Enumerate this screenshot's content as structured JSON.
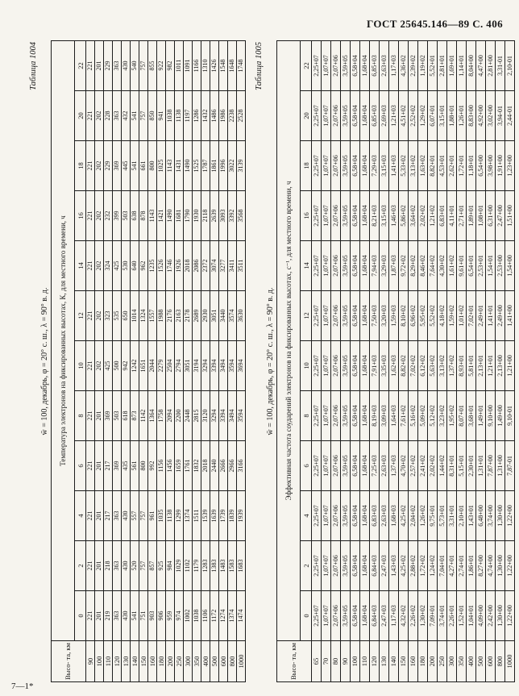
{
  "page": {
    "running_head": "ГОСТ 25645.146—89 С. 406",
    "printer_mark": "7—1*",
    "paper_color": "#f6f4ee",
    "ink_color": "#181818"
  },
  "tables": [
    {
      "label": "Таблица 1004",
      "title": "w̄ = 100, декабрь, φ = 20° с. ш., λ = 90° в. д.",
      "header": "Температура электронов на фиксированных высотах, К, для местного времени, ч",
      "row_header": "Высо- та, км",
      "hours": [
        "0",
        "2",
        "4",
        "6",
        "8",
        "10",
        "12",
        "14",
        "16",
        "18",
        "20",
        "22"
      ],
      "heights": [
        "90",
        "100",
        "110",
        "120",
        "130",
        "140",
        "150",
        "160",
        "180",
        "200",
        "250",
        "300",
        "350",
        "400",
        "500",
        "600",
        "800",
        "1000"
      ],
      "rows": [
        [
          "221",
          "221",
          "221",
          "221",
          "221",
          "221",
          "221",
          "221",
          "221",
          "221",
          "221",
          "221"
        ],
        [
          "201",
          "201",
          "201",
          "201",
          "201",
          "202",
          "202",
          "202",
          "202",
          "202",
          "202",
          "201"
        ],
        [
          "219",
          "218",
          "217",
          "217",
          "369",
          "425",
          "323",
          "324",
          "232",
          "229",
          "228",
          "229"
        ],
        [
          "363",
          "363",
          "363",
          "369",
          "503",
          "500",
          "535",
          "425",
          "399",
          "369",
          "363",
          "363"
        ],
        [
          "430",
          "430",
          "430",
          "435",
          "618",
          "942",
          "650",
          "530",
          "503",
          "445",
          "432",
          "430"
        ],
        [
          "541",
          "520",
          "557",
          "561",
          "873",
          "1242",
          "1014",
          "640",
          "638",
          "541",
          "541",
          "540"
        ],
        [
          "751",
          "757",
          "757",
          "800",
          "1142",
          "1651",
          "1324",
          "962",
          "878",
          "661",
          "757",
          "757"
        ],
        [
          "903",
          "857",
          "961",
          "992",
          "1364",
          "2044",
          "1557",
          "1235",
          "1143",
          "800",
          "850",
          "855"
        ],
        [
          "906",
          "925",
          "1035",
          "1156",
          "1758",
          "2279",
          "1988",
          "1526",
          "1421",
          "1025",
          "941",
          "922"
        ],
        [
          "959",
          "984",
          "1138",
          "1456",
          "2094",
          "2504",
          "2176",
          "1746",
          "1490",
          "1143",
          "1038",
          "982"
        ],
        [
          "974",
          "1029",
          "1299",
          "1659",
          "2200",
          "2794",
          "2163",
          "1926",
          "1681",
          "1431",
          "1138",
          "1011"
        ],
        [
          "1002",
          "1102",
          "1374",
          "1761",
          "2448",
          "3051",
          "2178",
          "2018",
          "1790",
          "1490",
          "1197",
          "1091"
        ],
        [
          "1038",
          "1179",
          "1511",
          "1832",
          "2815",
          "3194",
          "2689",
          "2086",
          "1930",
          "1525",
          "1286",
          "1166"
        ],
        [
          "1106",
          "1283",
          "1539",
          "2018",
          "3120",
          "3294",
          "2930",
          "2372",
          "2118",
          "1787",
          "1432",
          "1310"
        ],
        [
          "1172",
          "1383",
          "1639",
          "2440",
          "3294",
          "3394",
          "3051",
          "3074",
          "2639",
          "1861",
          "1486",
          "1426"
        ],
        [
          "1274",
          "1483",
          "1739",
          "2666",
          "3394",
          "3494",
          "3440",
          "3277",
          "3093",
          "1996",
          "1986",
          "1548"
        ],
        [
          "1374",
          "1583",
          "1839",
          "2966",
          "3494",
          "3594",
          "3574",
          "3411",
          "3392",
          "3022",
          "2238",
          "1648"
        ],
        [
          "1474",
          "1683",
          "1939",
          "3166",
          "3594",
          "3694",
          "3630",
          "3511",
          "3568",
          "3139",
          "2528",
          "1748"
        ]
      ]
    },
    {
      "label": "Таблица 1005",
      "title": "w̄ = 100, декабрь, φ = 20° с. ш., λ = 90° в. д.",
      "header": "Эффективная частота соударений электронов на фиксированных высотах, с⁻¹, для местного времени, ч",
      "row_header": "Высо- та, км",
      "hours": [
        "0",
        "2",
        "4",
        "6",
        "8",
        "10",
        "12",
        "14",
        "16",
        "18",
        "20",
        "22"
      ],
      "heights": [
        "65",
        "70",
        "80",
        "90",
        "100",
        "110",
        "120",
        "130",
        "140",
        "150",
        "160",
        "180",
        "200",
        "250",
        "300",
        "350",
        "400",
        "500",
        "600",
        "800",
        "1000"
      ],
      "rows": [
        [
          "2,25+07",
          "2,25+07",
          "2,25+07",
          "2,25+07",
          "2,25+07",
          "2,25+07",
          "2,25+07",
          "2,25+07",
          "2,25+07",
          "2,25+07",
          "2,25+07",
          "2,25+07"
        ],
        [
          "1,07+07",
          "1,07+07",
          "1,07+07",
          "1,07+07",
          "1,07+07",
          "1,07+07",
          "1,07+07",
          "1,07+07",
          "1,07+07",
          "1,07+07",
          "1,07+07",
          "1,07+07"
        ],
        [
          "2,07+06",
          "2,07+06",
          "2,07+06",
          "2,07+06",
          "2,07+06",
          "2,07+06",
          "2,07+06",
          "2,07+06",
          "2,07+06",
          "2,07+06",
          "2,07+06",
          "2,07+06"
        ],
        [
          "3,59+05",
          "3,59+05",
          "3,59+05",
          "3,59+05",
          "3,59+05",
          "3,59+05",
          "3,59+05",
          "3,59+05",
          "3,59+05",
          "3,59+05",
          "3,59+05",
          "3,59+05"
        ],
        [
          "6,58+04",
          "6,58+04",
          "6,58+04",
          "6,58+04",
          "6,58+04",
          "6,58+04",
          "6,58+04",
          "6,58+04",
          "6,58+04",
          "6,58+04",
          "6,58+04",
          "6,58+04"
        ],
        [
          "1,68+04",
          "1,68+04",
          "1,68+04",
          "1,68+04",
          "1,68+04",
          "1,68+04",
          "1,68+04",
          "1,68+04",
          "1,68+04",
          "1,68+04",
          "1,68+04",
          "1,68+04"
        ],
        [
          "6,84+03",
          "6,84+03",
          "6,83+03",
          "7,25+03",
          "8,19+03",
          "7,91+03",
          "7,50+03",
          "7,94+03",
          "8,21+03",
          "7,29+03",
          "6,85+03",
          "6,85+03"
        ],
        [
          "2,47+03",
          "2,47+03",
          "2,63+03",
          "2,63+03",
          "3,09+03",
          "3,35+03",
          "3,20+03",
          "3,29+03",
          "3,15+03",
          "3,15+03",
          "2,69+03",
          "2,63+03"
        ],
        [
          "1,17+03",
          "1,43+03",
          "1,68+03",
          "1,37+03",
          "1,64+03",
          "1,62+03",
          "1,59+03",
          "1,87+03",
          "1,46+03",
          "1,41+03",
          "1,21+03",
          "1,17+03"
        ],
        [
          "4,32+02",
          "4,25+02",
          "4,25+02",
          "4,70+02",
          "7,61+02",
          "8,82+02",
          "8,10+02",
          "9,72+02",
          "5,86+02",
          "5,33+02",
          "4,51+02",
          "4,36+02"
        ],
        [
          "2,26+02",
          "2,88+02",
          "2,04+02",
          "2,57+02",
          "5,16+02",
          "7,02+02",
          "6,96+02",
          "8,29+02",
          "3,64+02",
          "3,13+02",
          "2,52+02",
          "2,39+02"
        ],
        [
          "1,30+02",
          "1,72+02",
          "1,26+02",
          "2,41+02",
          "5,09+02",
          "6,12+02",
          "5,95+02",
          "8,46+02",
          "2,02+02",
          "1,63+02",
          "1,29+02",
          "1,19+02"
        ],
        [
          "7,09+01",
          "1,24+02",
          "9,75+01",
          "2,02+02",
          "5,12+02",
          "5,63+02",
          "5,52+02",
          "7,64+02",
          "1,21+02",
          "8,82+01",
          "6,07+01",
          "5,52+01"
        ],
        [
          "3,74+01",
          "7,04+01",
          "5,73+01",
          "1,44+02",
          "3,23+02",
          "3,13+02",
          "4,18+02",
          "4,30+02",
          "6,83+01",
          "4,53+01",
          "3,15+01",
          "2,81+01"
        ],
        [
          "2,26+01",
          "4,27+01",
          "3,31+01",
          "8,31+01",
          "1,95+02",
          "1,37+02",
          "1,59+02",
          "1,61+02",
          "4,11+01",
          "2,62+01",
          "1,88+01",
          "1,69+01"
        ],
        [
          "1,52+01",
          "2,74+01",
          "2,10+01",
          "5,15+01",
          "8,07+01",
          "8,93+01",
          "1,01+02",
          "9,61+01",
          "2,71+01",
          "1,72+01",
          "1,26+01",
          "1,14+01"
        ],
        [
          "1,04+01",
          "1,86+01",
          "1,43+01",
          "2,30+01",
          "3,68+01",
          "5,81+01",
          "7,02+01",
          "6,54+01",
          "1,89+01",
          "1,18+01",
          "8,83+00",
          "8,04+00"
        ],
        [
          "4,09+00",
          "8,27+00",
          "6,48+00",
          "1,31+01",
          "1,49+01",
          "2,13+01",
          "2,49+01",
          "2,53+01",
          "1,08+01",
          "6,54+00",
          "4,92+00",
          "4,47+00"
        ],
        [
          "2,42+00",
          "4,74+00",
          "3,74+00",
          "7,87+00",
          "9,10+00",
          "1,21+01",
          "1,41+01",
          "1,54+01",
          "6,31+00",
          "3,98+00",
          "3,02+00",
          "2,81+00"
        ],
        [
          "1,30+00",
          "1,30+00",
          "1,30+00",
          "1,31+00",
          "1,49+00",
          "2,13+00",
          "2,49+00",
          "2,53+00",
          "2,47+00",
          "1,91+00",
          "3,94-01",
          "3,31-01"
        ],
        [
          "1,22+00",
          "1,22+00",
          "1,22+00",
          "7,87-01",
          "9,10-01",
          "1,21+00",
          "1,41+00",
          "1,54+00",
          "1,51+00",
          "1,23+00",
          "2,44-01",
          "2,10-01"
        ]
      ]
    }
  ]
}
